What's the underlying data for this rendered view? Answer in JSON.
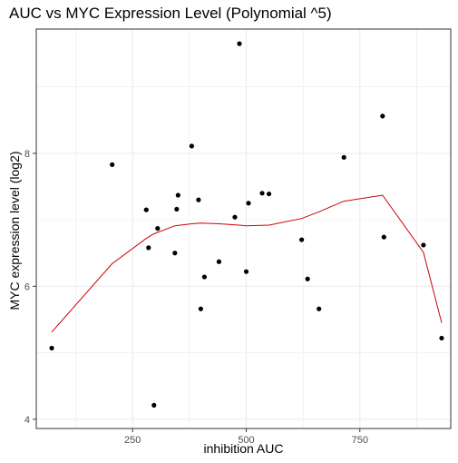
{
  "chart_data": {
    "type": "scatter",
    "title": "AUC vs MYC Expression Level (Polynomial ^5)",
    "xlabel": "inhibition AUC",
    "ylabel": "MYC expression level (log2)",
    "xlim": [
      38,
      950
    ],
    "ylim": [
      3.86,
      9.87
    ],
    "x_ticks": [
      250,
      500,
      750
    ],
    "y_ticks": [
      4,
      6,
      8
    ],
    "x_tick_labels": [
      "250",
      "500",
      "750"
    ],
    "y_tick_labels": [
      "4",
      "6",
      "8"
    ],
    "grid": true,
    "points": [
      {
        "x": 72,
        "y": 5.07
      },
      {
        "x": 205,
        "y": 7.83
      },
      {
        "x": 280,
        "y": 7.15
      },
      {
        "x": 285,
        "y": 6.58
      },
      {
        "x": 297,
        "y": 4.21
      },
      {
        "x": 305,
        "y": 6.87
      },
      {
        "x": 343,
        "y": 6.5
      },
      {
        "x": 347,
        "y": 7.16
      },
      {
        "x": 350,
        "y": 7.37
      },
      {
        "x": 380,
        "y": 8.11
      },
      {
        "x": 395,
        "y": 7.3
      },
      {
        "x": 400,
        "y": 5.66
      },
      {
        "x": 408,
        "y": 6.14
      },
      {
        "x": 440,
        "y": 6.37
      },
      {
        "x": 475,
        "y": 7.04
      },
      {
        "x": 485,
        "y": 9.65
      },
      {
        "x": 500,
        "y": 6.22
      },
      {
        "x": 505,
        "y": 7.25
      },
      {
        "x": 535,
        "y": 7.4
      },
      {
        "x": 550,
        "y": 7.39
      },
      {
        "x": 622,
        "y": 6.7
      },
      {
        "x": 635,
        "y": 6.11
      },
      {
        "x": 660,
        "y": 5.66
      },
      {
        "x": 715,
        "y": 7.94
      },
      {
        "x": 800,
        "y": 8.56
      },
      {
        "x": 803,
        "y": 6.74
      },
      {
        "x": 890,
        "y": 6.62
      },
      {
        "x": 930,
        "y": 5.22
      }
    ],
    "series": [
      {
        "name": "Polynomial ^5 fit",
        "color": "#cc0000",
        "x": [
          72,
          205,
          280,
          297,
          343,
          380,
          400,
          440,
          485,
          500,
          550,
          622,
          660,
          715,
          800,
          890,
          930
        ],
        "y": [
          5.31,
          6.34,
          6.72,
          6.79,
          6.91,
          6.94,
          6.95,
          6.94,
          6.92,
          6.91,
          6.92,
          7.02,
          7.12,
          7.28,
          7.37,
          6.51,
          5.45
        ]
      }
    ],
    "point_color": "#000000",
    "grid_color": "#ebebeb",
    "axis_color": "#333333"
  }
}
